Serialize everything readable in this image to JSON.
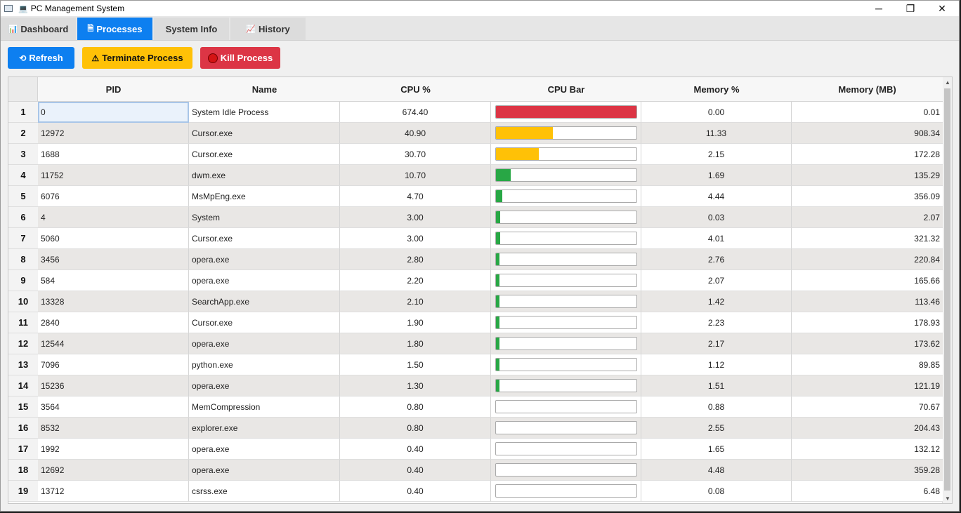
{
  "window": {
    "title": "PC Management System",
    "title_glyph": "💻",
    "controls": {
      "minimize": "─",
      "maximize": "❐",
      "close": "✕"
    }
  },
  "tabs": [
    {
      "icon": "📊",
      "label": "Dashboard",
      "active": false
    },
    {
      "icon": "🗎",
      "label": "Processes",
      "active": true
    },
    {
      "icon": "",
      "label": "System Info",
      "active": false
    },
    {
      "icon": "📈",
      "label": "History",
      "active": false
    }
  ],
  "toolbar": {
    "refresh_icon": "⟲",
    "refresh_label": "Refresh",
    "terminate_icon": "⚠",
    "terminate_label": "Terminate Process",
    "kill_label": "Kill Process"
  },
  "table": {
    "headers": [
      "PID",
      "Name",
      "CPU %",
      "CPU Bar",
      "Memory %",
      "Memory (MB)"
    ],
    "colors": {
      "high": "#dc3545",
      "medium": "#ffc107",
      "low": "#28a745"
    },
    "rows": [
      {
        "n": "1",
        "pid": "0",
        "name": "System Idle Process",
        "cpu": "674.40",
        "bar": 100,
        "level": "high",
        "mem": "0.00",
        "mb": "0.01"
      },
      {
        "n": "2",
        "pid": "12972",
        "name": "Cursor.exe",
        "cpu": "40.90",
        "bar": 40.9,
        "level": "medium",
        "mem": "11.33",
        "mb": "908.34"
      },
      {
        "n": "3",
        "pid": "1688",
        "name": "Cursor.exe",
        "cpu": "30.70",
        "bar": 30.7,
        "level": "medium",
        "mem": "2.15",
        "mb": "172.28"
      },
      {
        "n": "4",
        "pid": "11752",
        "name": "dwm.exe",
        "cpu": "10.70",
        "bar": 10.7,
        "level": "low",
        "mem": "1.69",
        "mb": "135.29"
      },
      {
        "n": "5",
        "pid": "6076",
        "name": "MsMpEng.exe",
        "cpu": "4.70",
        "bar": 4.7,
        "level": "low",
        "mem": "4.44",
        "mb": "356.09"
      },
      {
        "n": "6",
        "pid": "4",
        "name": "System",
        "cpu": "3.00",
        "bar": 3.0,
        "level": "low",
        "mem": "0.03",
        "mb": "2.07"
      },
      {
        "n": "7",
        "pid": "5060",
        "name": "Cursor.exe",
        "cpu": "3.00",
        "bar": 3.0,
        "level": "low",
        "mem": "4.01",
        "mb": "321.32"
      },
      {
        "n": "8",
        "pid": "3456",
        "name": "opera.exe",
        "cpu": "2.80",
        "bar": 2.8,
        "level": "low",
        "mem": "2.76",
        "mb": "220.84"
      },
      {
        "n": "9",
        "pid": "584",
        "name": "opera.exe",
        "cpu": "2.20",
        "bar": 2.2,
        "level": "low",
        "mem": "2.07",
        "mb": "165.66"
      },
      {
        "n": "10",
        "pid": "13328",
        "name": "SearchApp.exe",
        "cpu": "2.10",
        "bar": 2.1,
        "level": "low",
        "mem": "1.42",
        "mb": "113.46"
      },
      {
        "n": "11",
        "pid": "2840",
        "name": "Cursor.exe",
        "cpu": "1.90",
        "bar": 1.9,
        "level": "low",
        "mem": "2.23",
        "mb": "178.93"
      },
      {
        "n": "12",
        "pid": "12544",
        "name": "opera.exe",
        "cpu": "1.80",
        "bar": 1.8,
        "level": "low",
        "mem": "2.17",
        "mb": "173.62"
      },
      {
        "n": "13",
        "pid": "7096",
        "name": "python.exe",
        "cpu": "1.50",
        "bar": 1.5,
        "level": "low",
        "mem": "1.12",
        "mb": "89.85"
      },
      {
        "n": "14",
        "pid": "15236",
        "name": "opera.exe",
        "cpu": "1.30",
        "bar": 1.3,
        "level": "low",
        "mem": "1.51",
        "mb": "121.19"
      },
      {
        "n": "15",
        "pid": "3564",
        "name": "MemCompression",
        "cpu": "0.80",
        "bar": 0,
        "level": "low",
        "mem": "0.88",
        "mb": "70.67"
      },
      {
        "n": "16",
        "pid": "8532",
        "name": "explorer.exe",
        "cpu": "0.80",
        "bar": 0,
        "level": "low",
        "mem": "2.55",
        "mb": "204.43"
      },
      {
        "n": "17",
        "pid": "1992",
        "name": "opera.exe",
        "cpu": "0.40",
        "bar": 0,
        "level": "low",
        "mem": "1.65",
        "mb": "132.12"
      },
      {
        "n": "18",
        "pid": "12692",
        "name": "opera.exe",
        "cpu": "0.40",
        "bar": 0,
        "level": "low",
        "mem": "4.48",
        "mb": "359.28"
      },
      {
        "n": "19",
        "pid": "13712",
        "name": "csrss.exe",
        "cpu": "0.40",
        "bar": 0,
        "level": "low",
        "mem": "0.08",
        "mb": "6.48"
      }
    ]
  }
}
